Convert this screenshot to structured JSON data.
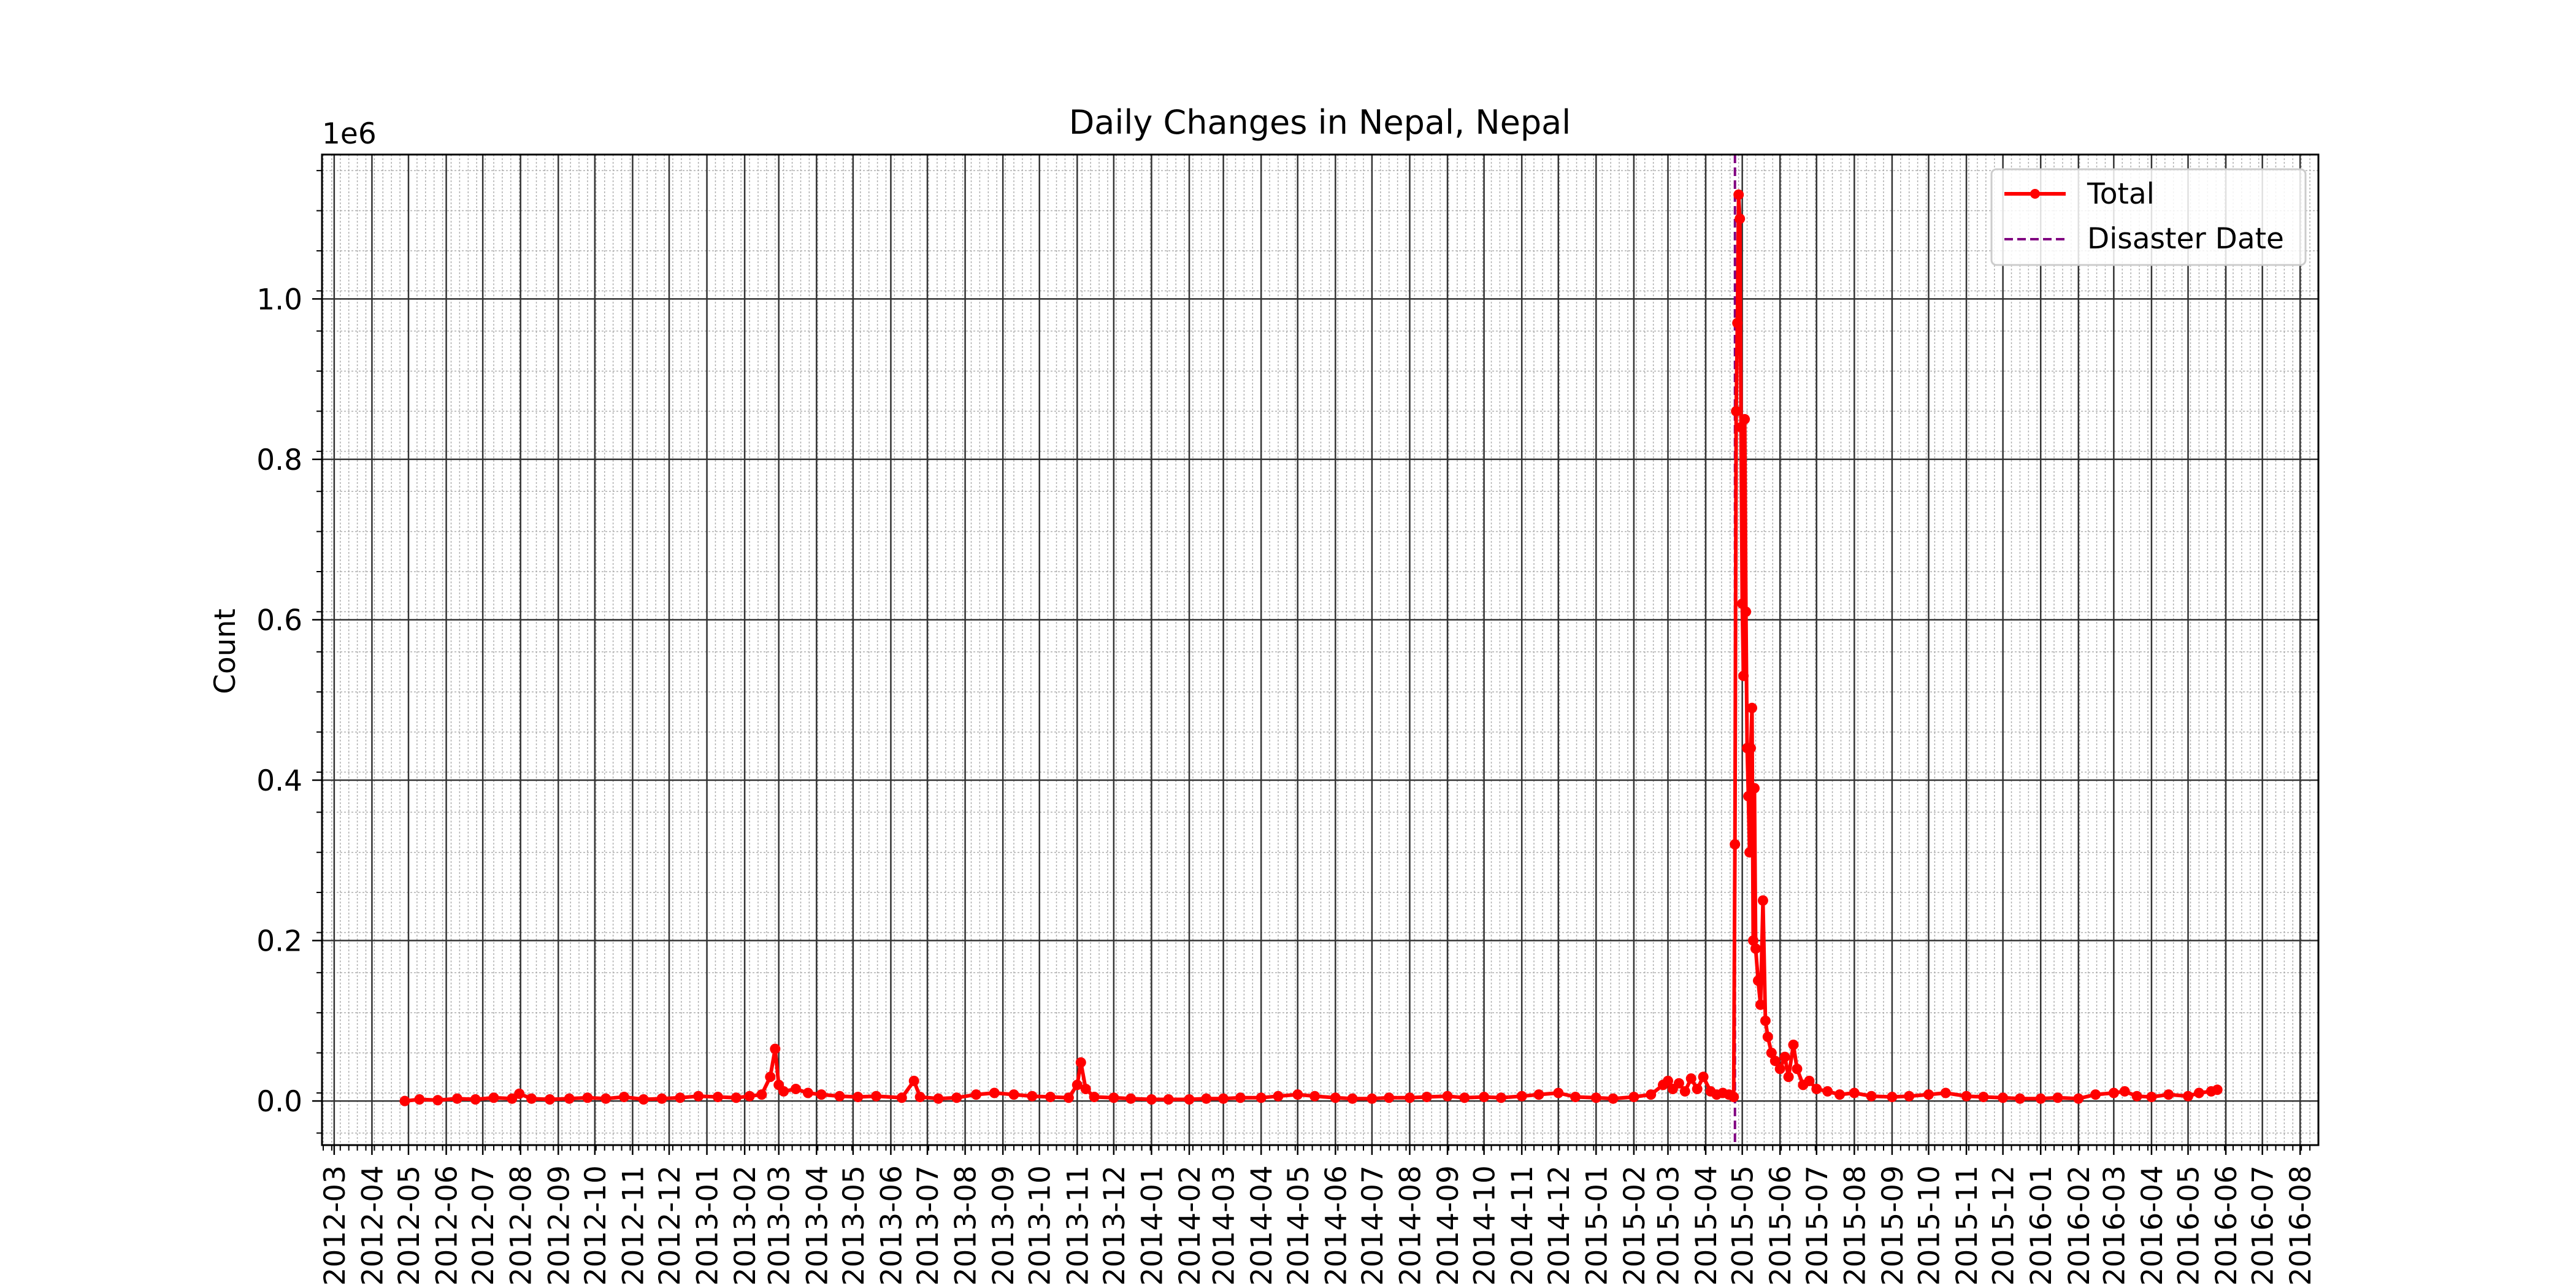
{
  "chart_data": {
    "type": "line",
    "title": "Daily Changes in Nepal, Nepal",
    "xlabel": "",
    "ylabel": "Count",
    "y_offset_label": "1e6",
    "y_tick_labels": [
      "0.0",
      "0.2",
      "0.4",
      "0.6",
      "0.8",
      "1.0"
    ],
    "ylim": [
      -0.055,
      1.18
    ],
    "y_unit_multiplier": 1000000,
    "xlim": [
      "2012-02-20",
      "2016-08-16"
    ],
    "x_ticks": [
      "2012-03",
      "2012-04",
      "2012-05",
      "2012-06",
      "2012-07",
      "2012-08",
      "2012-09",
      "2012-10",
      "2012-11",
      "2012-12",
      "2013-01",
      "2013-02",
      "2013-03",
      "2013-04",
      "2013-05",
      "2013-06",
      "2013-07",
      "2013-08",
      "2013-09",
      "2013-10",
      "2013-11",
      "2013-12",
      "2014-01",
      "2014-02",
      "2014-03",
      "2014-04",
      "2014-05",
      "2014-06",
      "2014-07",
      "2014-08",
      "2014-09",
      "2014-10",
      "2014-11",
      "2014-12",
      "2015-01",
      "2015-02",
      "2015-03",
      "2015-04",
      "2015-05",
      "2015-06",
      "2015-07",
      "2015-08",
      "2015-09",
      "2015-10",
      "2015-11",
      "2015-12",
      "2016-01",
      "2016-02",
      "2016-03",
      "2016-04",
      "2016-05",
      "2016-06",
      "2016-07",
      "2016-08"
    ],
    "grid": true,
    "legend_position": "top-right",
    "legend": [
      {
        "label": "Total",
        "style": "solid-marker"
      },
      {
        "label": "Disaster Date",
        "style": "dashed"
      }
    ],
    "disaster_date": "2015-04-25",
    "series": [
      {
        "name": "Total",
        "color": "#ff0000",
        "points": [
          [
            "2012-04-28",
            0.0
          ],
          [
            "2012-05-10",
            0.002
          ],
          [
            "2012-05-25",
            0.001
          ],
          [
            "2012-06-10",
            0.003
          ],
          [
            "2012-06-25",
            0.002
          ],
          [
            "2012-07-10",
            0.004
          ],
          [
            "2012-07-25",
            0.003
          ],
          [
            "2012-07-31",
            0.009
          ],
          [
            "2012-08-10",
            0.003
          ],
          [
            "2012-08-25",
            0.002
          ],
          [
            "2012-09-10",
            0.003
          ],
          [
            "2012-09-25",
            0.004
          ],
          [
            "2012-10-10",
            0.003
          ],
          [
            "2012-10-25",
            0.005
          ],
          [
            "2012-11-10",
            0.002
          ],
          [
            "2012-11-25",
            0.003
          ],
          [
            "2012-12-10",
            0.004
          ],
          [
            "2012-12-25",
            0.006
          ],
          [
            "2013-01-10",
            0.005
          ],
          [
            "2013-01-25",
            0.004
          ],
          [
            "2013-02-05",
            0.006
          ],
          [
            "2013-02-15",
            0.008
          ],
          [
            "2013-02-22",
            0.03
          ],
          [
            "2013-02-26",
            0.065
          ],
          [
            "2013-03-01",
            0.02
          ],
          [
            "2013-03-05",
            0.012
          ],
          [
            "2013-03-15",
            0.015
          ],
          [
            "2013-03-25",
            0.01
          ],
          [
            "2013-04-05",
            0.008
          ],
          [
            "2013-04-20",
            0.006
          ],
          [
            "2013-05-05",
            0.005
          ],
          [
            "2013-05-20",
            0.006
          ],
          [
            "2013-06-10",
            0.004
          ],
          [
            "2013-06-20",
            0.025
          ],
          [
            "2013-06-25",
            0.005
          ],
          [
            "2013-07-10",
            0.003
          ],
          [
            "2013-07-25",
            0.004
          ],
          [
            "2013-08-10",
            0.008
          ],
          [
            "2013-08-25",
            0.01
          ],
          [
            "2013-09-10",
            0.008
          ],
          [
            "2013-09-25",
            0.006
          ],
          [
            "2013-10-10",
            0.005
          ],
          [
            "2013-10-25",
            0.004
          ],
          [
            "2013-11-01",
            0.02
          ],
          [
            "2013-11-04",
            0.048
          ],
          [
            "2013-11-08",
            0.015
          ],
          [
            "2013-11-15",
            0.005
          ],
          [
            "2013-12-01",
            0.004
          ],
          [
            "2013-12-15",
            0.003
          ],
          [
            "2014-01-01",
            0.002
          ],
          [
            "2014-01-15",
            0.002
          ],
          [
            "2014-02-01",
            0.002
          ],
          [
            "2014-02-15",
            0.003
          ],
          [
            "2014-03-01",
            0.003
          ],
          [
            "2014-03-15",
            0.004
          ],
          [
            "2014-04-01",
            0.004
          ],
          [
            "2014-04-15",
            0.006
          ],
          [
            "2014-05-01",
            0.008
          ],
          [
            "2014-05-15",
            0.006
          ],
          [
            "2014-06-01",
            0.004
          ],
          [
            "2014-06-15",
            0.003
          ],
          [
            "2014-07-01",
            0.003
          ],
          [
            "2014-07-15",
            0.004
          ],
          [
            "2014-08-01",
            0.004
          ],
          [
            "2014-08-15",
            0.005
          ],
          [
            "2014-09-01",
            0.006
          ],
          [
            "2014-09-15",
            0.004
          ],
          [
            "2014-10-01",
            0.005
          ],
          [
            "2014-10-15",
            0.004
          ],
          [
            "2014-11-01",
            0.006
          ],
          [
            "2014-11-15",
            0.008
          ],
          [
            "2014-12-01",
            0.01
          ],
          [
            "2014-12-15",
            0.005
          ],
          [
            "2015-01-01",
            0.004
          ],
          [
            "2015-01-15",
            0.003
          ],
          [
            "2015-02-01",
            0.005
          ],
          [
            "2015-02-15",
            0.008
          ],
          [
            "2015-02-25",
            0.02
          ],
          [
            "2015-03-01",
            0.025
          ],
          [
            "2015-03-05",
            0.015
          ],
          [
            "2015-03-10",
            0.022
          ],
          [
            "2015-03-15",
            0.012
          ],
          [
            "2015-03-20",
            0.028
          ],
          [
            "2015-03-25",
            0.015
          ],
          [
            "2015-03-30",
            0.03
          ],
          [
            "2015-04-05",
            0.012
          ],
          [
            "2015-04-10",
            0.008
          ],
          [
            "2015-04-15",
            0.01
          ],
          [
            "2015-04-20",
            0.008
          ],
          [
            "2015-04-24",
            0.005
          ],
          [
            "2015-04-25",
            0.32
          ],
          [
            "2015-04-26",
            0.86
          ],
          [
            "2015-04-27",
            0.97
          ],
          [
            "2015-04-28",
            1.13
          ],
          [
            "2015-04-29",
            1.1
          ],
          [
            "2015-04-30",
            0.84
          ],
          [
            "2015-05-01",
            0.62
          ],
          [
            "2015-05-02",
            0.53
          ],
          [
            "2015-05-03",
            0.85
          ],
          [
            "2015-05-04",
            0.61
          ],
          [
            "2015-05-05",
            0.44
          ],
          [
            "2015-05-06",
            0.38
          ],
          [
            "2015-05-07",
            0.31
          ],
          [
            "2015-05-08",
            0.44
          ],
          [
            "2015-05-09",
            0.49
          ],
          [
            "2015-05-10",
            0.2
          ],
          [
            "2015-05-11",
            0.39
          ],
          [
            "2015-05-12",
            0.19
          ],
          [
            "2015-05-14",
            0.15
          ],
          [
            "2015-05-16",
            0.12
          ],
          [
            "2015-05-18",
            0.25
          ],
          [
            "2015-05-20",
            0.1
          ],
          [
            "2015-05-22",
            0.08
          ],
          [
            "2015-05-25",
            0.06
          ],
          [
            "2015-05-28",
            0.05
          ],
          [
            "2015-06-01",
            0.04
          ],
          [
            "2015-06-05",
            0.055
          ],
          [
            "2015-06-08",
            0.03
          ],
          [
            "2015-06-12",
            0.07
          ],
          [
            "2015-06-15",
            0.04
          ],
          [
            "2015-06-20",
            0.02
          ],
          [
            "2015-06-25",
            0.025
          ],
          [
            "2015-07-01",
            0.015
          ],
          [
            "2015-07-10",
            0.012
          ],
          [
            "2015-07-20",
            0.008
          ],
          [
            "2015-08-01",
            0.01
          ],
          [
            "2015-08-15",
            0.006
          ],
          [
            "2015-09-01",
            0.005
          ],
          [
            "2015-09-15",
            0.006
          ],
          [
            "2015-10-01",
            0.008
          ],
          [
            "2015-10-15",
            0.01
          ],
          [
            "2015-11-01",
            0.006
          ],
          [
            "2015-11-15",
            0.005
          ],
          [
            "2015-12-01",
            0.004
          ],
          [
            "2015-12-15",
            0.003
          ],
          [
            "2016-01-01",
            0.003
          ],
          [
            "2016-01-15",
            0.004
          ],
          [
            "2016-02-01",
            0.003
          ],
          [
            "2016-02-15",
            0.008
          ],
          [
            "2016-03-01",
            0.01
          ],
          [
            "2016-03-10",
            0.012
          ],
          [
            "2016-03-20",
            0.006
          ],
          [
            "2016-04-01",
            0.005
          ],
          [
            "2016-04-15",
            0.008
          ],
          [
            "2016-05-01",
            0.006
          ],
          [
            "2016-05-10",
            0.01
          ],
          [
            "2016-05-20",
            0.012
          ],
          [
            "2016-05-25",
            0.014
          ]
        ]
      }
    ]
  }
}
